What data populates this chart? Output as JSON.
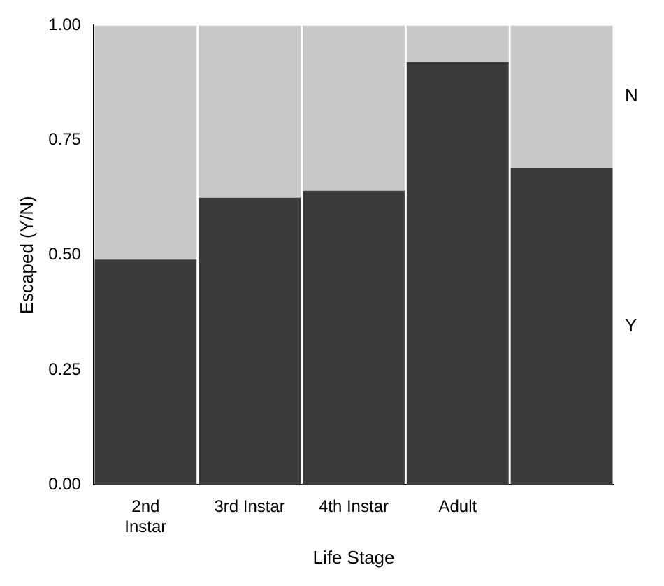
{
  "chart_data": {
    "type": "bar",
    "stacked": true,
    "xlabel": "Life Stage",
    "ylabel": "Escaped (Y/N)",
    "categories": [
      "2nd Instar",
      "3rd Instar",
      "4th Instar",
      "Adult",
      null
    ],
    "series": [
      {
        "name": "Y",
        "color": "#3a3a3a",
        "values": [
          0.49,
          0.625,
          0.64,
          0.92,
          0.69
        ]
      },
      {
        "name": "N",
        "color": "#c8c8c8",
        "values": [
          0.51,
          0.375,
          0.36,
          0.08,
          0.31
        ]
      }
    ],
    "ylim": [
      0,
      1
    ],
    "yticks": [
      {
        "value": 0,
        "label": "0.00"
      },
      {
        "value": 0.25,
        "label": "0.25"
      },
      {
        "value": 0.5,
        "label": "0.50"
      },
      {
        "value": 0.75,
        "label": "0.75"
      },
      {
        "value": 1,
        "label": "1.00"
      }
    ],
    "grid": false,
    "legend": "right"
  }
}
